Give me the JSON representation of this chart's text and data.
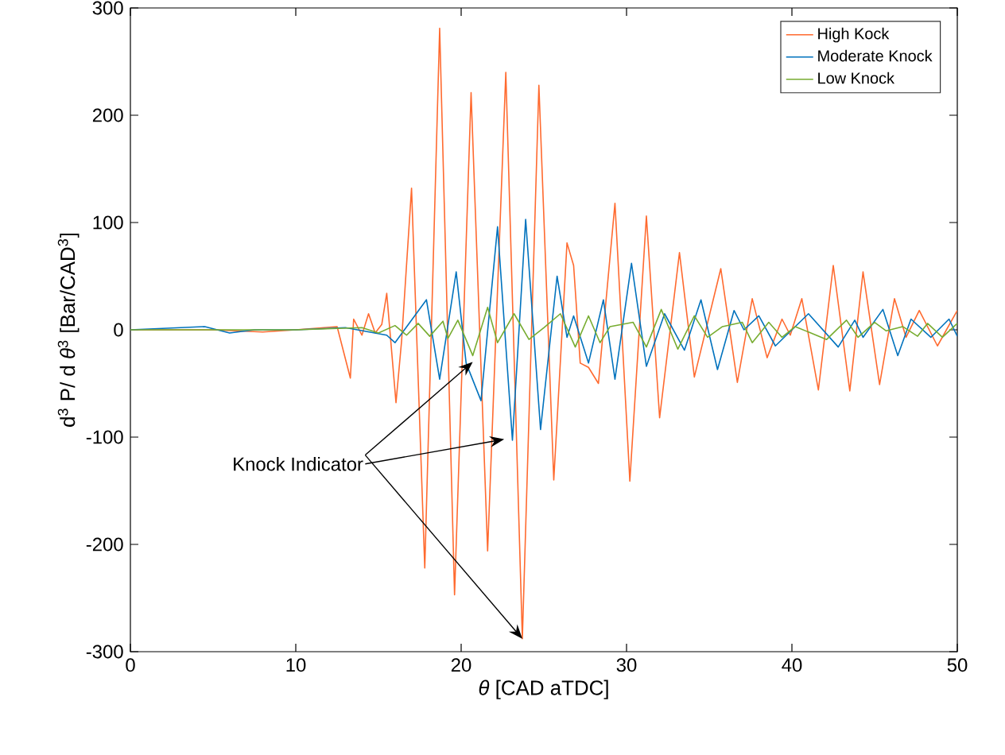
{
  "chart_data": {
    "type": "line",
    "xlabel": "*θ* [CAD aTDC]",
    "ylabel": "d$^{3}$ P/ d *θ*$^{3}$ [Bar/CAD$^{3}$]",
    "xlim": [
      0,
      50
    ],
    "ylim": [
      -300,
      300
    ],
    "xticks": [
      0,
      10,
      20,
      30,
      40,
      50
    ],
    "yticks": [
      -300,
      -200,
      -100,
      0,
      100,
      200,
      300
    ],
    "grid": false,
    "legend": "top right",
    "annotations": [
      {
        "text": "Knock Indicator",
        "x": 23.7,
        "y": -288
      }
    ],
    "series": [
      {
        "name": "High Kock",
        "color": "#ff6a2f",
        "x": [
          0,
          5,
          8,
          10,
          12.5,
          13.3,
          13.5,
          14,
          14.4,
          14.8,
          15.2,
          15.5,
          16.06,
          16.4,
          17.0,
          17.8,
          18.7,
          19.6,
          20.6,
          21.6,
          22.7,
          23.7,
          24.7,
          25.6,
          26.4,
          26.8,
          27.2,
          27.7,
          28.3,
          29.3,
          30.2,
          31.2,
          32.0,
          33.2,
          34.1,
          35.7,
          36.7,
          37.6,
          38.5,
          39.4,
          39.9,
          40.6,
          41.6,
          42.5,
          43.5,
          44.3,
          45.3,
          46.2,
          46.9,
          47.7,
          48.8,
          50
        ],
        "values": [
          0,
          0,
          -2,
          0,
          3,
          -45,
          10,
          -5,
          15,
          -3,
          5,
          34,
          -68,
          -10,
          132,
          -222,
          281,
          -247,
          221,
          -206,
          240,
          -288,
          228,
          -140,
          81,
          60,
          -31,
          -35,
          -50,
          118,
          -141,
          106,
          -82,
          72,
          -44,
          57,
          -49,
          29,
          -26,
          10,
          -5,
          29,
          -56,
          60,
          -57,
          54,
          -51,
          29,
          -7,
          18,
          -15,
          18
        ]
      },
      {
        "name": "Moderate Knock",
        "color": "#0072bd",
        "x": [
          0,
          4.5,
          6,
          7.5,
          10,
          13,
          15.5,
          16,
          17.9,
          18.7,
          19.7,
          20.3,
          21.2,
          22.2,
          23.1,
          23.9,
          24.8,
          25.8,
          26.4,
          26.8,
          27.7,
          28.6,
          29.3,
          30.3,
          31.2,
          32.3,
          33.5,
          34.5,
          35.5,
          36.5,
          37.1,
          38.0,
          39.0,
          41.0,
          42.8,
          43.8,
          44.3,
          45.5,
          46.4,
          47.2,
          48.4,
          49.5,
          50
        ],
        "values": [
          0,
          3,
          -3,
          0,
          0,
          2,
          -5,
          -12,
          28,
          -46,
          54,
          -31,
          -66,
          96,
          -103,
          103,
          -93,
          50,
          -7,
          13,
          -31,
          28,
          -46,
          62,
          -34,
          15,
          -19,
          28,
          -37,
          18,
          0,
          13,
          -15,
          15,
          -16,
          9,
          -7,
          19,
          -24,
          10,
          -7,
          10,
          -6
        ]
      },
      {
        "name": "Low Knock",
        "color": "#77ac30",
        "x": [
          0,
          10,
          14,
          15,
          16,
          16.7,
          17.4,
          18.1,
          18.9,
          19.2,
          19.8,
          20.7,
          21.6,
          22.2,
          23.2,
          24.1,
          25.0,
          26.0,
          26.9,
          27.7,
          28.4,
          29.0,
          30.4,
          31.2,
          32.1,
          33.1,
          34.1,
          34.9,
          35.8,
          37.0,
          37.6,
          38.6,
          39.4,
          40.2,
          42.1,
          43.3,
          44.0,
          45.0,
          45.7,
          46.7,
          47.6,
          48.2,
          49.1,
          50
        ],
        "values": [
          0,
          0,
          2,
          -3,
          4,
          -5,
          6,
          -6,
          8,
          -8,
          9,
          -24,
          21,
          -12,
          15,
          -9,
          2,
          15,
          -16,
          13,
          -12,
          3,
          7,
          -16,
          19,
          -18,
          13,
          -7,
          3,
          7,
          -12,
          7,
          -7,
          3,
          -9,
          9,
          -7,
          7,
          -1,
          3,
          -6,
          6,
          -7,
          6
        ]
      }
    ]
  }
}
